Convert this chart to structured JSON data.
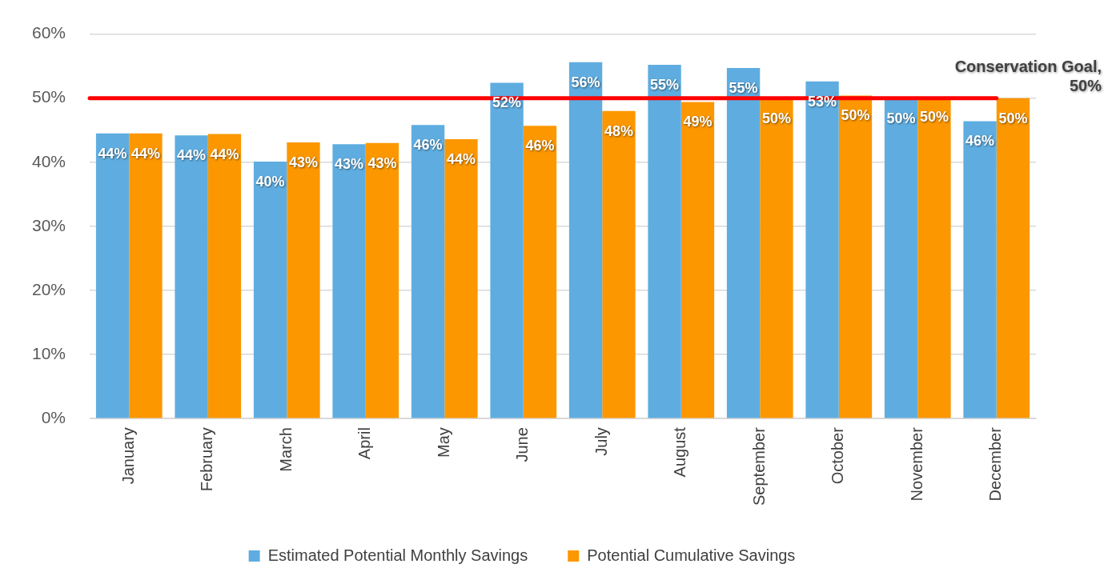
{
  "chart_data": {
    "type": "bar",
    "categories": [
      "January",
      "February",
      "March",
      "April",
      "May",
      "June",
      "July",
      "August",
      "September",
      "October",
      "November",
      "December"
    ],
    "series": [
      {
        "name": "Estimated Potential Monthly Savings",
        "color": "#5fade0",
        "values": [
          44.5,
          44.2,
          40.1,
          42.8,
          45.8,
          52.4,
          55.6,
          55.2,
          54.7,
          52.6,
          50.0,
          46.4
        ],
        "value_labels": [
          "44%",
          "44%",
          "40%",
          "43%",
          "46%",
          "52%",
          "56%",
          "55%",
          "55%",
          "53%",
          "50%",
          "46%"
        ]
      },
      {
        "name": "Potential Cumulative Savings",
        "color": "#fc9700",
        "values": [
          44.5,
          44.4,
          43.1,
          43.0,
          43.6,
          45.7,
          48.0,
          49.4,
          50.0,
          50.4,
          50.2,
          50.0
        ],
        "value_labels": [
          "44%",
          "44%",
          "43%",
          "43%",
          "44%",
          "46%",
          "48%",
          "49%",
          "50%",
          "50%",
          "50%",
          "50%"
        ]
      }
    ],
    "ylim": [
      0,
      60
    ],
    "yticks": [
      {
        "value": 0,
        "label": "0%"
      },
      {
        "value": 10,
        "label": "10%"
      },
      {
        "value": 20,
        "label": "20%"
      },
      {
        "value": 30,
        "label": "30%"
      },
      {
        "value": 40,
        "label": "40%"
      },
      {
        "value": 50,
        "label": "50%"
      },
      {
        "value": 60,
        "label": "60%"
      }
    ],
    "ref_lines": [
      {
        "axis": "y",
        "value": 50,
        "label": "Conservation Goal, 50%",
        "color": "#ff0000"
      }
    ],
    "grid": "y",
    "legend": "bottom"
  }
}
